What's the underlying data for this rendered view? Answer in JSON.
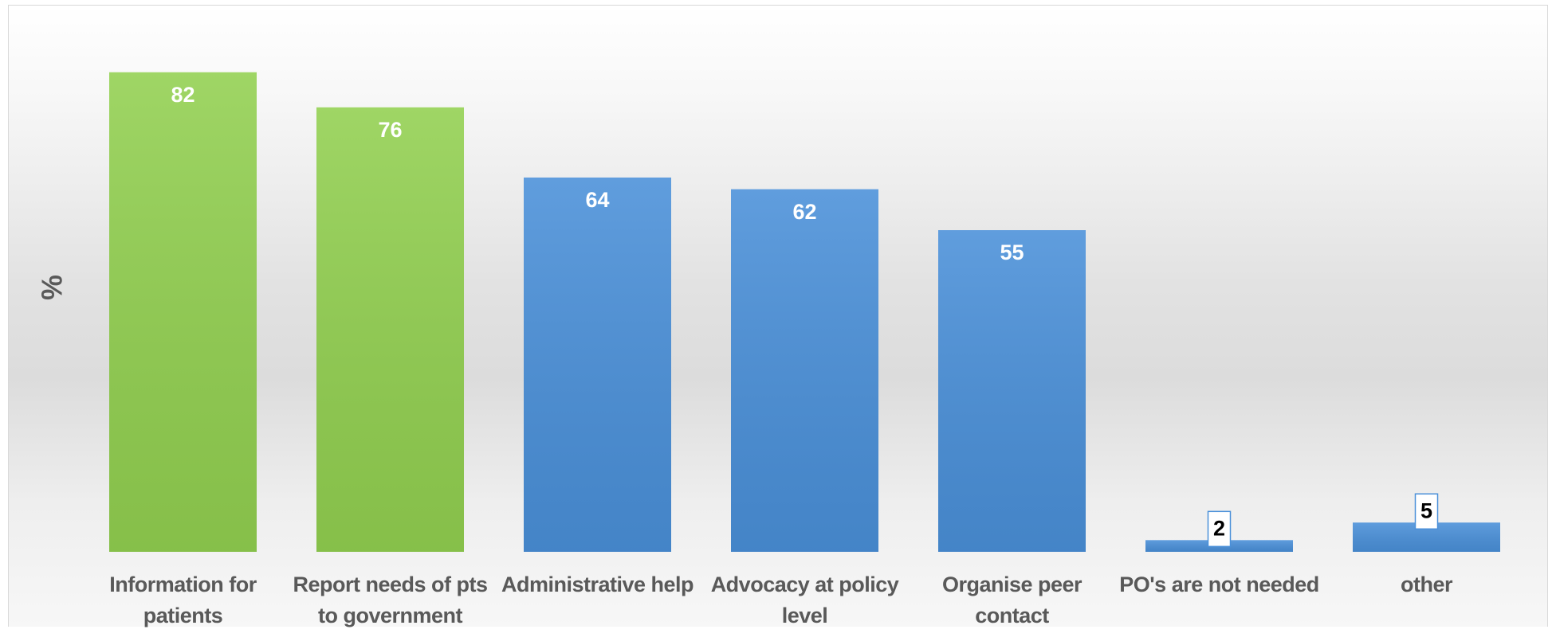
{
  "chart_data": {
    "type": "bar",
    "y_label": "%",
    "categories": [
      "Information for patients",
      "Report needs of pts to government",
      "Administrative help",
      "Advocacy at policy level",
      "Organise peer contact",
      "PO's are not needed",
      "other"
    ],
    "values": [
      82,
      76,
      64,
      62,
      55,
      2,
      5
    ],
    "colors": [
      "#92d050",
      "#92d050",
      "#4a90d9",
      "#4a90d9",
      "#4a90d9",
      "#4a90d9",
      "#4a90d9"
    ],
    "ylim": [
      0,
      90
    ]
  }
}
